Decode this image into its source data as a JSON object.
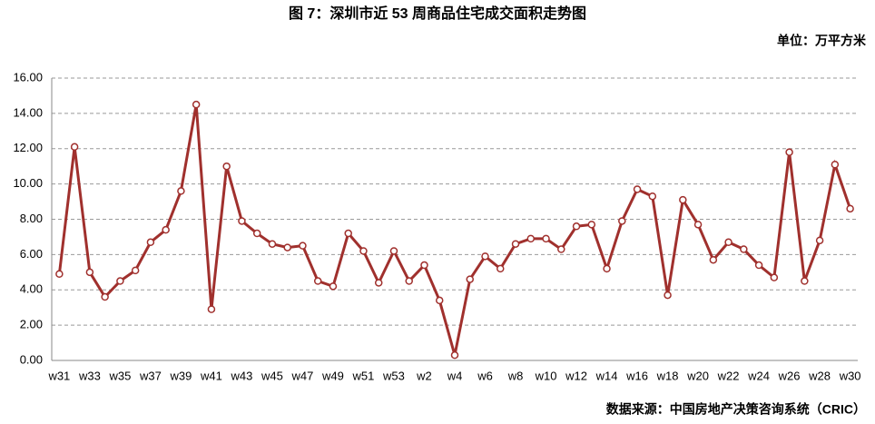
{
  "chart_data": {
    "type": "line",
    "title": "图 7：深圳市近 53 周商品住宅成交面积走势图",
    "unit": "单位：万平方米",
    "source": "数据来源：中国房地产决策咨询系统（CRIC）",
    "categories": [
      "w31",
      null,
      "w33",
      null,
      "w35",
      null,
      "w37",
      null,
      "w39",
      null,
      "w41",
      null,
      "w43",
      null,
      "w45",
      null,
      "w47",
      null,
      "w49",
      null,
      "w51",
      null,
      "w53",
      null,
      "w2",
      null,
      "w4",
      null,
      "w6",
      null,
      "w8",
      null,
      "w10",
      null,
      "w12",
      null,
      "w14",
      null,
      "w16",
      null,
      "w18",
      null,
      "w20",
      null,
      "w22",
      null,
      "w24",
      null,
      "w26",
      null,
      "w28",
      null,
      "w30"
    ],
    "values": [
      4.9,
      12.1,
      5.0,
      3.6,
      4.5,
      5.1,
      6.7,
      7.4,
      9.6,
      14.5,
      2.9,
      11.0,
      7.9,
      7.2,
      6.6,
      6.4,
      6.5,
      4.5,
      4.2,
      7.2,
      6.2,
      4.4,
      6.2,
      4.5,
      5.4,
      3.4,
      0.3,
      4.6,
      5.9,
      5.2,
      6.6,
      6.9,
      6.9,
      6.3,
      7.6,
      7.7,
      5.2,
      7.9,
      9.7,
      9.3,
      3.7,
      9.1,
      7.7,
      5.7,
      6.7,
      6.3,
      5.4,
      4.7,
      11.8,
      4.5,
      6.8,
      11.1,
      8.6
    ],
    "color": "#a0302d",
    "ylim": [
      0,
      16
    ],
    "yticks": [
      {
        "value": 0,
        "label": "0.00"
      },
      {
        "value": 2,
        "label": "2.00"
      },
      {
        "value": 4,
        "label": "4.00"
      },
      {
        "value": 6,
        "label": "6.00"
      },
      {
        "value": 8,
        "label": "8.00"
      },
      {
        "value": 10,
        "label": "10.00"
      },
      {
        "value": 12,
        "label": "12.00"
      },
      {
        "value": 14,
        "label": "14.00"
      },
      {
        "value": 16,
        "label": "16.00"
      }
    ],
    "grid": true
  }
}
